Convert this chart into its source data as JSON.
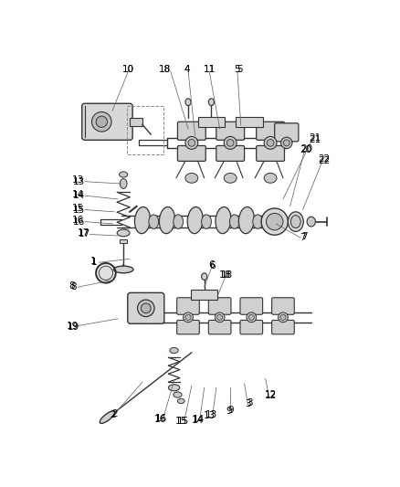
{
  "bg_color": "#ffffff",
  "line_color": "#333333",
  "label_color": "#000000",
  "label_fontsize": 7.5,
  "fig_width": 4.38,
  "fig_height": 5.33,
  "dpi": 100
}
